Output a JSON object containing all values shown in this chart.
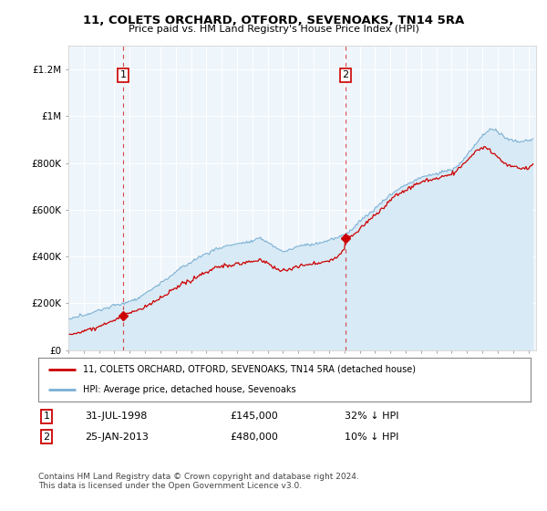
{
  "title": "11, COLETS ORCHARD, OTFORD, SEVENOAKS, TN14 5RA",
  "subtitle": "Price paid vs. HM Land Registry's House Price Index (HPI)",
  "legend_line1": "11, COLETS ORCHARD, OTFORD, SEVENOAKS, TN14 5RA (detached house)",
  "legend_line2": "HPI: Average price, detached house, Sevenoaks",
  "transaction1_date": "31-JUL-1998",
  "transaction1_price": "£145,000",
  "transaction1_hpi": "32% ↓ HPI",
  "transaction2_date": "25-JAN-2013",
  "transaction2_price": "£480,000",
  "transaction2_hpi": "10% ↓ HPI",
  "footer": "Contains HM Land Registry data © Crown copyright and database right 2024.\nThis data is licensed under the Open Government Licence v3.0.",
  "xlim_start": 1995.0,
  "xlim_end": 2025.5,
  "ylim_bottom": 0,
  "ylim_top": 1300000,
  "yticks": [
    0,
    200000,
    400000,
    600000,
    800000,
    1000000,
    1200000
  ],
  "ytick_labels": [
    "£0",
    "£200K",
    "£400K",
    "£600K",
    "£800K",
    "£1M",
    "£1.2M"
  ],
  "color_price": "#cc0000",
  "color_hpi": "#7ab0d4",
  "color_hpi_fill": "#d8eaf5",
  "background_plot": "#eef5fb",
  "transaction1_year": 1998.58,
  "transaction1_value": 145000,
  "transaction2_year": 2013.07,
  "transaction2_value": 480000
}
